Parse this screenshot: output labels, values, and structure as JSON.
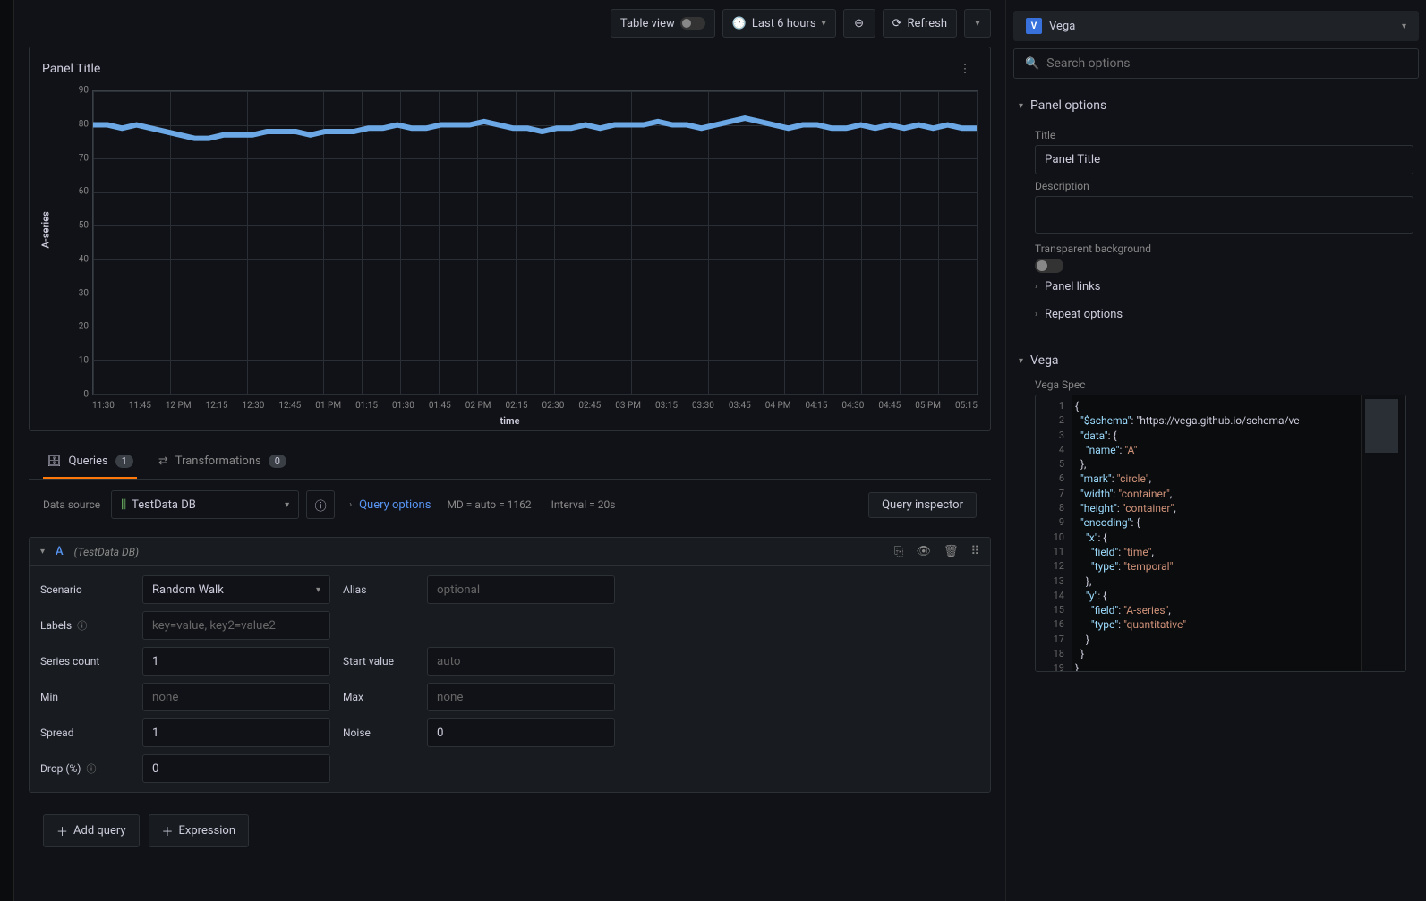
{
  "toolbar": {
    "table_view": "Table view",
    "time_range": "Last 6 hours",
    "refresh": "Refresh"
  },
  "panel": {
    "title": "Panel Title"
  },
  "chart": {
    "type": "line",
    "y_label": "A-series",
    "x_label": "time",
    "ylim": [
      0,
      90
    ],
    "ytick_step": 10,
    "y_ticks": [
      0,
      10,
      20,
      30,
      40,
      50,
      60,
      70,
      80,
      90
    ],
    "x_ticks": [
      "11:30",
      "11:45",
      "12 PM",
      "12:15",
      "12:30",
      "12:45",
      "01 PM",
      "01:15",
      "01:30",
      "01:45",
      "02 PM",
      "02:15",
      "02:30",
      "02:45",
      "03 PM",
      "03:15",
      "03:30",
      "03:45",
      "04 PM",
      "04:15",
      "04:30",
      "04:45",
      "05 PM",
      "05:15"
    ],
    "line_color": "#6ba8e5",
    "grid_color": "#2a2e35",
    "border_color": "#3a3f46",
    "background_color": "#111217",
    "series": [
      {
        "name": "A-series",
        "color": "#6ba8e5",
        "approx_values": [
          80,
          80,
          79,
          80,
          79,
          78,
          77,
          76,
          76,
          77,
          77,
          77,
          78,
          78,
          78,
          77,
          78,
          78,
          78,
          79,
          79,
          80,
          79,
          79,
          80,
          80,
          80,
          81,
          80,
          79,
          79,
          78,
          79,
          79,
          80,
          79,
          80,
          80,
          80,
          81,
          80,
          80,
          79,
          80,
          81,
          82,
          81,
          80,
          79,
          80,
          80,
          79,
          79,
          80,
          79,
          80,
          79,
          80,
          79,
          80,
          79,
          79
        ]
      }
    ]
  },
  "tabs": {
    "queries": {
      "label": "Queries",
      "count": "1"
    },
    "transforms": {
      "label": "Transformations",
      "count": "0"
    }
  },
  "datasource": {
    "label": "Data source",
    "selected": "TestData DB",
    "query_options_label": "Query options",
    "md_text": "MD = auto = 1162",
    "interval_text": "Interval = 20s",
    "inspector": "Query inspector"
  },
  "query": {
    "letter": "A",
    "src": "(TestData DB)",
    "fields": {
      "scenario_label": "Scenario",
      "scenario_value": "Random Walk",
      "alias_label": "Alias",
      "alias_placeholder": "optional",
      "labels_label": "Labels",
      "labels_placeholder": "key=value, key2=value2",
      "series_count_label": "Series count",
      "series_count_value": "1",
      "start_value_label": "Start value",
      "start_value_placeholder": "auto",
      "min_label": "Min",
      "min_placeholder": "none",
      "max_label": "Max",
      "max_placeholder": "none",
      "spread_label": "Spread",
      "spread_value": "1",
      "noise_label": "Noise",
      "noise_value": "0",
      "drop_label": "Drop (%)",
      "drop_value": "0"
    }
  },
  "buttons": {
    "add_query": "Add query",
    "expression": "Expression"
  },
  "right": {
    "viz_name": "Vega",
    "search_placeholder": "Search options",
    "panel_options": "Panel options",
    "title_label": "Title",
    "title_value": "Panel Title",
    "desc_label": "Description",
    "transparent_label": "Transparent background",
    "panel_links": "Panel links",
    "repeat_options": "Repeat options",
    "vega_sect": "Vega",
    "vega_spec_label": "Vega Spec"
  },
  "vega_code": {
    "lines": 19,
    "content": [
      "{",
      "  \"$schema\": \"https://vega.github.io/schema/ve",
      "  \"data\": {",
      "    \"name\": \"A\"",
      "  },",
      "  \"mark\": \"circle\",",
      "  \"width\": \"container\",",
      "  \"height\": \"container\",",
      "  \"encoding\": {",
      "    \"x\": {",
      "      \"field\": \"time\",",
      "      \"type\": \"temporal\"",
      "    },",
      "    \"y\": {",
      "      \"field\": \"A-series\",",
      "      \"type\": \"quantitative\"",
      "    }",
      "  }",
      "}"
    ]
  }
}
